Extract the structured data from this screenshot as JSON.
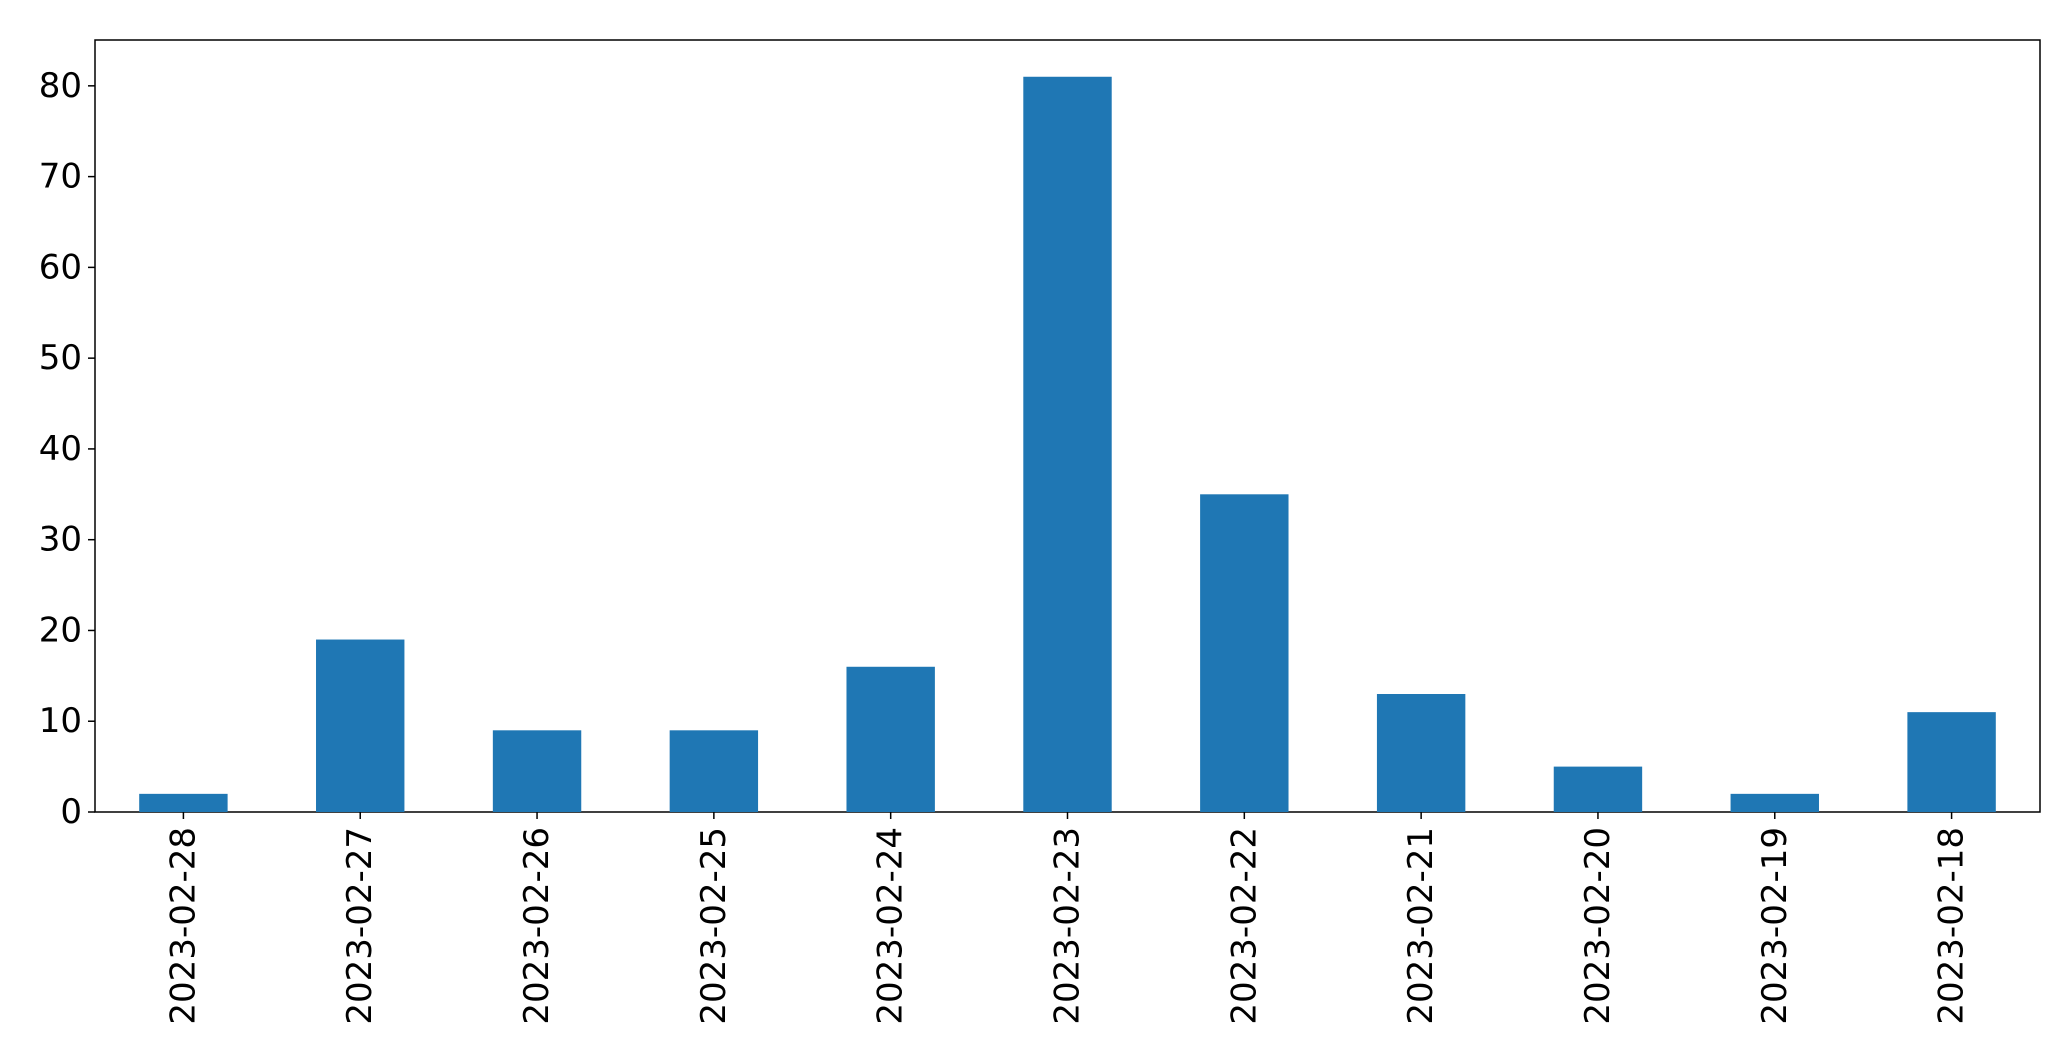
{
  "chart_data": {
    "type": "bar",
    "title": "",
    "xlabel": "",
    "ylabel": "",
    "categories": [
      "2023-02-28",
      "2023-02-27",
      "2023-02-26",
      "2023-02-25",
      "2023-02-24",
      "2023-02-23",
      "2023-02-22",
      "2023-02-21",
      "2023-02-20",
      "2023-02-19",
      "2023-02-18"
    ],
    "values": [
      2,
      19,
      9,
      9,
      16,
      81,
      35,
      13,
      5,
      2,
      11
    ],
    "ylim": [
      0,
      85.05
    ],
    "yticks": [
      0,
      10,
      20,
      30,
      40,
      50,
      60,
      70,
      80
    ],
    "ytick_labels": [
      "0",
      "10",
      "20",
      "30",
      "40",
      "50",
      "60",
      "70",
      "80"
    ],
    "x_tick_rotation": "vertical",
    "grid": false,
    "legend": "none",
    "bar_color": "#1f77b4"
  }
}
